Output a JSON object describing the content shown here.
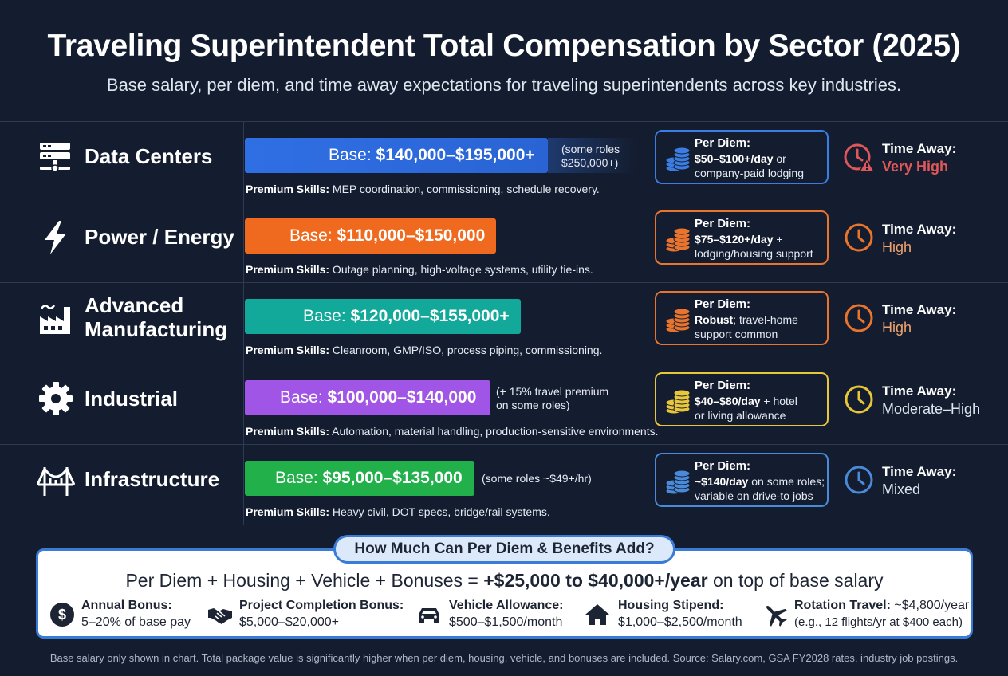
{
  "title": "Traveling Superintendent Total Compensation by Sector (2025)",
  "subtitle": "Base salary, per diem, and time away expectations for traveling superintendents across key industries.",
  "sectors": [
    {
      "name": "Data Centers",
      "icon": "server-rack-icon",
      "base_prefix": "Base: ",
      "base_range": "$140,000–$195,000+",
      "base_note_line1": "(some roles",
      "base_note_line2": "$250,000+)",
      "bar_color": "#2f6fe4",
      "skills_label": "Premium Skills:",
      "skills_text": " MEP coordination, commissioning, schedule recovery.",
      "per_diem_title": "Per Diem:",
      "per_diem_bold": "$50–$100+/day",
      "per_diem_rest1": " or",
      "per_diem_line2": "company-paid lodging",
      "per_diem_color": "#3b7de0",
      "time_away_title": "Time Away:",
      "time_away_value": "Very High",
      "time_away_color": "#e0575a"
    },
    {
      "name": "Power / Energy",
      "icon": "lightning-bolt-icon",
      "base_prefix": "Base: ",
      "base_range": "$110,000–$150,000",
      "bar_color": "#ef6a1f",
      "skills_label": "Premium Skills:",
      "skills_text": " Outage planning, high-voltage systems, utility tie-ins.",
      "per_diem_title": "Per Diem:",
      "per_diem_bold": "$75–$120+/day",
      "per_diem_rest1": " +",
      "per_diem_line2": "lodging/housing support",
      "per_diem_color": "#e8742e",
      "time_away_title": "Time Away:",
      "time_away_value": "High",
      "time_away_color": "#e8742e"
    },
    {
      "name_line1": "Advanced",
      "name_line2": "Manufacturing",
      "icon": "factory-icon",
      "base_prefix": "Base: ",
      "base_range": "$120,000–$155,000+",
      "bar_color": "#13a99a",
      "skills_label": "Premium Skills:",
      "skills_text": " Cleanroom, GMP/ISO, process piping, commissioning.",
      "per_diem_title": "Per Diem:",
      "per_diem_bold": "Robust",
      "per_diem_rest1": "; travel-home",
      "per_diem_line2": "support common",
      "per_diem_color": "#e8742e",
      "time_away_title": "Time Away:",
      "time_away_value": "High",
      "time_away_color": "#e8742e"
    },
    {
      "name": "Industrial",
      "icon": "gear-icon",
      "base_prefix": "Base: ",
      "base_range": "$100,000–$140,000",
      "base_note_line1": "(+ 15% travel premium",
      "base_note_line2": "on some roles)",
      "bar_color": "#a155e6",
      "skills_label": "Premium Skills:",
      "skills_text": " Automation, material handling, production-sensitive environments.",
      "per_diem_title": "Per Diem:",
      "per_diem_bold": "$40–$80/day",
      "per_diem_rest1": " + hotel",
      "per_diem_line2": "or living allowance",
      "per_diem_color": "#e8c63a",
      "time_away_title": "Time Away:",
      "time_away_value": "Moderate–High",
      "time_away_color": "#e8c63a"
    },
    {
      "name": "Infrastructure",
      "icon": "bridge-icon",
      "base_prefix": "Base: ",
      "base_range": "$95,000–$135,000",
      "base_note_line1": "(some roles ~$49+/hr)",
      "bar_color": "#22b04b",
      "skills_label": "Premium Skills:",
      "skills_text": " Heavy civil, DOT specs, bridge/rail systems.",
      "per_diem_title": "Per Diem:",
      "per_diem_bold": "~$140/day",
      "per_diem_rest1": " on some roles;",
      "per_diem_line2": "variable on drive-to jobs",
      "per_diem_color": "#4a8ad8",
      "time_away_title": "Time Away:",
      "time_away_value": "Mixed",
      "time_away_color": "#4a8ad8"
    }
  ],
  "summary": {
    "badge": "How Much Can Per Diem & Benefits Add?",
    "formula_prefix": "Per Diem + Housing + Vehicle + Bonuses = ",
    "formula_bold": "+$25,000 to $40,000+/year",
    "formula_suffix": " on top of base salary",
    "benefits": [
      {
        "icon": "dollar-coin-icon",
        "title": "Annual Bonus:",
        "value": "5–20% of base pay"
      },
      {
        "icon": "handshake-icon",
        "title": "Project Completion Bonus:",
        "value": "$5,000–$20,000+"
      },
      {
        "icon": "car-icon",
        "title": "Vehicle Allowance:",
        "value": "$500–$1,500/month"
      },
      {
        "icon": "house-icon",
        "title": "Housing Stipend:",
        "value": "$1,000–$2,500/month"
      },
      {
        "icon": "airplane-icon",
        "title": "Rotation Travel:",
        "title_rest": " ~$4,800/year",
        "value": "(e.g., 12 flights/yr at $400 each)"
      }
    ]
  },
  "footer": "Base salary only shown in chart. Total package value is significantly higher when per diem, housing, vehicle, and bonuses are included. Source: Salary.com, GSA FY2028 rates, industry job postings."
}
